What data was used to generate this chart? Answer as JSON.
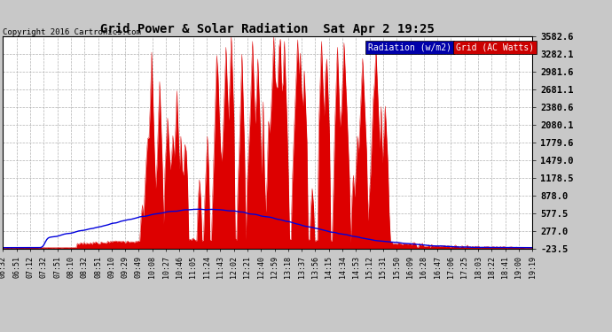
{
  "title": "Grid Power & Solar Radiation  Sat Apr 2 19:25",
  "copyright": "Copyright 2016 Cartronics.com",
  "legend_radiation": "Radiation (w/m2)",
  "legend_grid": "Grid (AC Watts)",
  "y_tick_labels": [
    "3582.6",
    "3282.1",
    "2981.6",
    "2681.1",
    "2380.6",
    "2080.1",
    "1779.6",
    "1479.0",
    "1178.5",
    "878.0",
    "577.5",
    "277.0",
    "-23.5"
  ],
  "y_tick_values": [
    3582.6,
    3282.1,
    2981.6,
    2681.1,
    2380.6,
    2080.1,
    1779.6,
    1479.0,
    1178.5,
    878.0,
    577.5,
    277.0,
    -23.5
  ],
  "y_min": -23.5,
  "y_max": 3582.6,
  "fig_bg_color": "#c8c8c8",
  "plot_bg_color": "#ffffff",
  "grid_color": "#aaaaaa",
  "radiation_color": "#0000dd",
  "grid_power_color": "#dd0000",
  "legend_rad_bg": "#0000aa",
  "legend_grid_bg": "#cc0000",
  "x_tick_labels": [
    "06:32",
    "06:51",
    "07:12",
    "07:32",
    "07:51",
    "08:10",
    "08:32",
    "08:51",
    "09:10",
    "09:29",
    "09:49",
    "10:08",
    "10:27",
    "10:46",
    "11:05",
    "11:24",
    "11:43",
    "12:02",
    "12:21",
    "12:40",
    "12:59",
    "13:18",
    "13:37",
    "13:56",
    "14:15",
    "14:34",
    "14:53",
    "15:12",
    "15:31",
    "15:50",
    "16:09",
    "16:28",
    "16:47",
    "17:06",
    "17:25",
    "18:03",
    "18:22",
    "18:41",
    "19:00",
    "19:19"
  ]
}
